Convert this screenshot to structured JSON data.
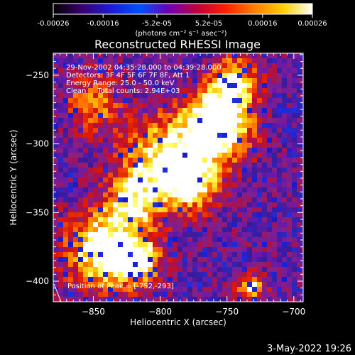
{
  "colorbar": {
    "tick_labels": [
      "-0.00026",
      "-0.00016",
      "-5.2e-05",
      "5.2e-05",
      "0.00016",
      "0.00026"
    ],
    "tick_values": [
      -0.00026,
      -0.00016,
      -5.2e-05,
      5.2e-05,
      0.00016,
      0.00026
    ],
    "range": [
      -0.00026,
      0.00026
    ],
    "units": "(photons cm⁻² s⁻¹ asec⁻²)",
    "colormap": [
      "#000000",
      "#3a006e",
      "#1b1bd8",
      "#0050ff",
      "#6d00b6",
      "#c0003a",
      "#ff2000",
      "#ff8000",
      "#ffd000",
      "#ffffff"
    ]
  },
  "chart_data": {
    "type": "heatmap",
    "title": "Reconstructed RHESSI Image",
    "xlabel": "Heliocentric X (arcsec)",
    "ylabel": "Heliocentric Y (arcsec)",
    "xlim": [
      -880,
      -693
    ],
    "ylim": [
      -415,
      -234
    ],
    "x_ticks": [
      -850,
      -800,
      -750,
      -700
    ],
    "y_ticks": [
      -250,
      -300,
      -350,
      -400
    ],
    "x_tick_labels": [
      "−850",
      "−800",
      "−750",
      "−700"
    ],
    "y_tick_labels": [
      "−250",
      "−300",
      "−350",
      "−400"
    ],
    "bright_regions": [
      {
        "x": -757,
        "y": -287,
        "sigma": 17,
        "amplitude": 1.0
      },
      {
        "x": -795,
        "y": -313,
        "sigma": 22,
        "amplitude": 0.75
      },
      {
        "x": -745,
        "y": -255,
        "sigma": 12,
        "amplitude": 0.7
      },
      {
        "x": -840,
        "y": -378,
        "sigma": 20,
        "amplitude": 0.85
      },
      {
        "x": -815,
        "y": -385,
        "sigma": 10,
        "amplitude": 0.6
      },
      {
        "x": -820,
        "y": -342,
        "sigma": 14,
        "amplitude": 0.5
      },
      {
        "x": -732,
        "y": -405,
        "sigma": 7,
        "amplitude": 0.7
      },
      {
        "x": -850,
        "y": -270,
        "sigma": 14,
        "amplitude": 0.45
      },
      {
        "x": -775,
        "y": -330,
        "sigma": 12,
        "amplitude": 0.55
      }
    ],
    "annotations": {
      "line1": "29-Nov-2002 04:35:28.000 to 04:39:28.000",
      "line2": "Detectors: 3F 4F 5F 6F 7F 8F, Att 1",
      "line3": "Energy Range: 25.0 - 50.0 keV",
      "line4": "Clean     Total counts: 2.94E+03",
      "position": "Position of Peak = [-752,-293]"
    }
  },
  "footer": {
    "timestamp": "3-May-2022 19:26"
  }
}
